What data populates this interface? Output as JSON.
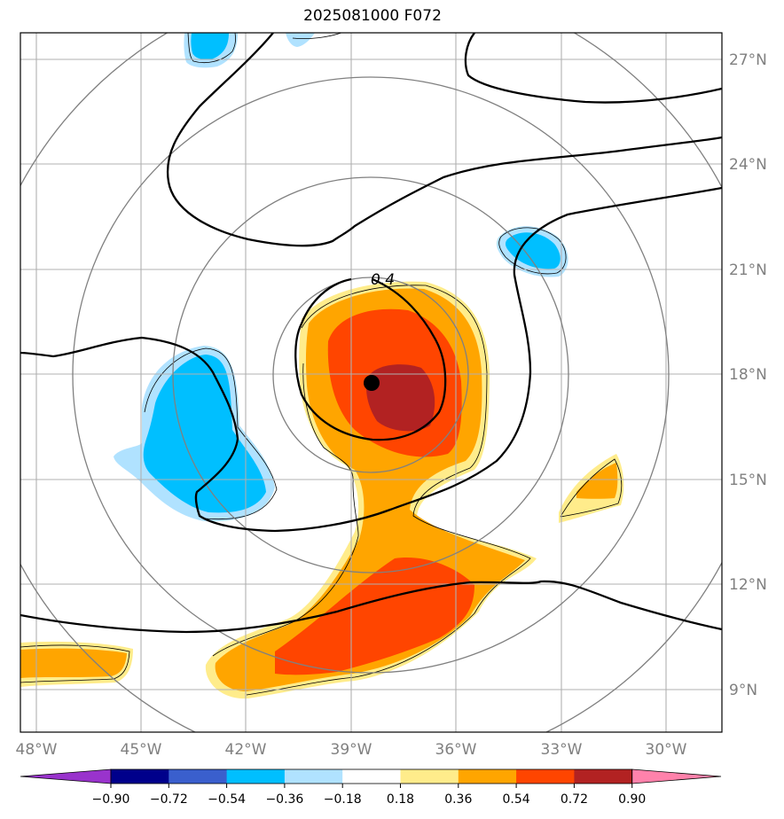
{
  "title": "2025081000 F072",
  "contour_label": "0.4",
  "lon_labels": [
    "48°W",
    "45°W",
    "42°W",
    "39°W",
    "36°W",
    "33°W",
    "30°W"
  ],
  "lat_labels": [
    "27°N",
    "24°N",
    "21°N",
    "18°N",
    "15°N",
    "12°N",
    "9°N"
  ],
  "colorbar": {
    "ticks": [
      "−0.90",
      "−0.72",
      "−0.54",
      "−0.36",
      "−0.18",
      "0.18",
      "0.36",
      "0.54",
      "0.72",
      "0.90"
    ],
    "colors": [
      "#9933cc",
      "#00008b",
      "#3a5fcd",
      "#00bfff",
      "#b0e2ff",
      "#ffffff",
      "#ffec8b",
      "#ffa500",
      "#ff4500",
      "#b22222",
      "#ff82ab"
    ]
  },
  "storm_center": {
    "lon": -38.4,
    "lat": 17.7
  },
  "colors": {
    "grid": "#b0b0b0",
    "range_rings": "#808080",
    "contour": "#000000",
    "axis_labels": "#808080"
  }
}
